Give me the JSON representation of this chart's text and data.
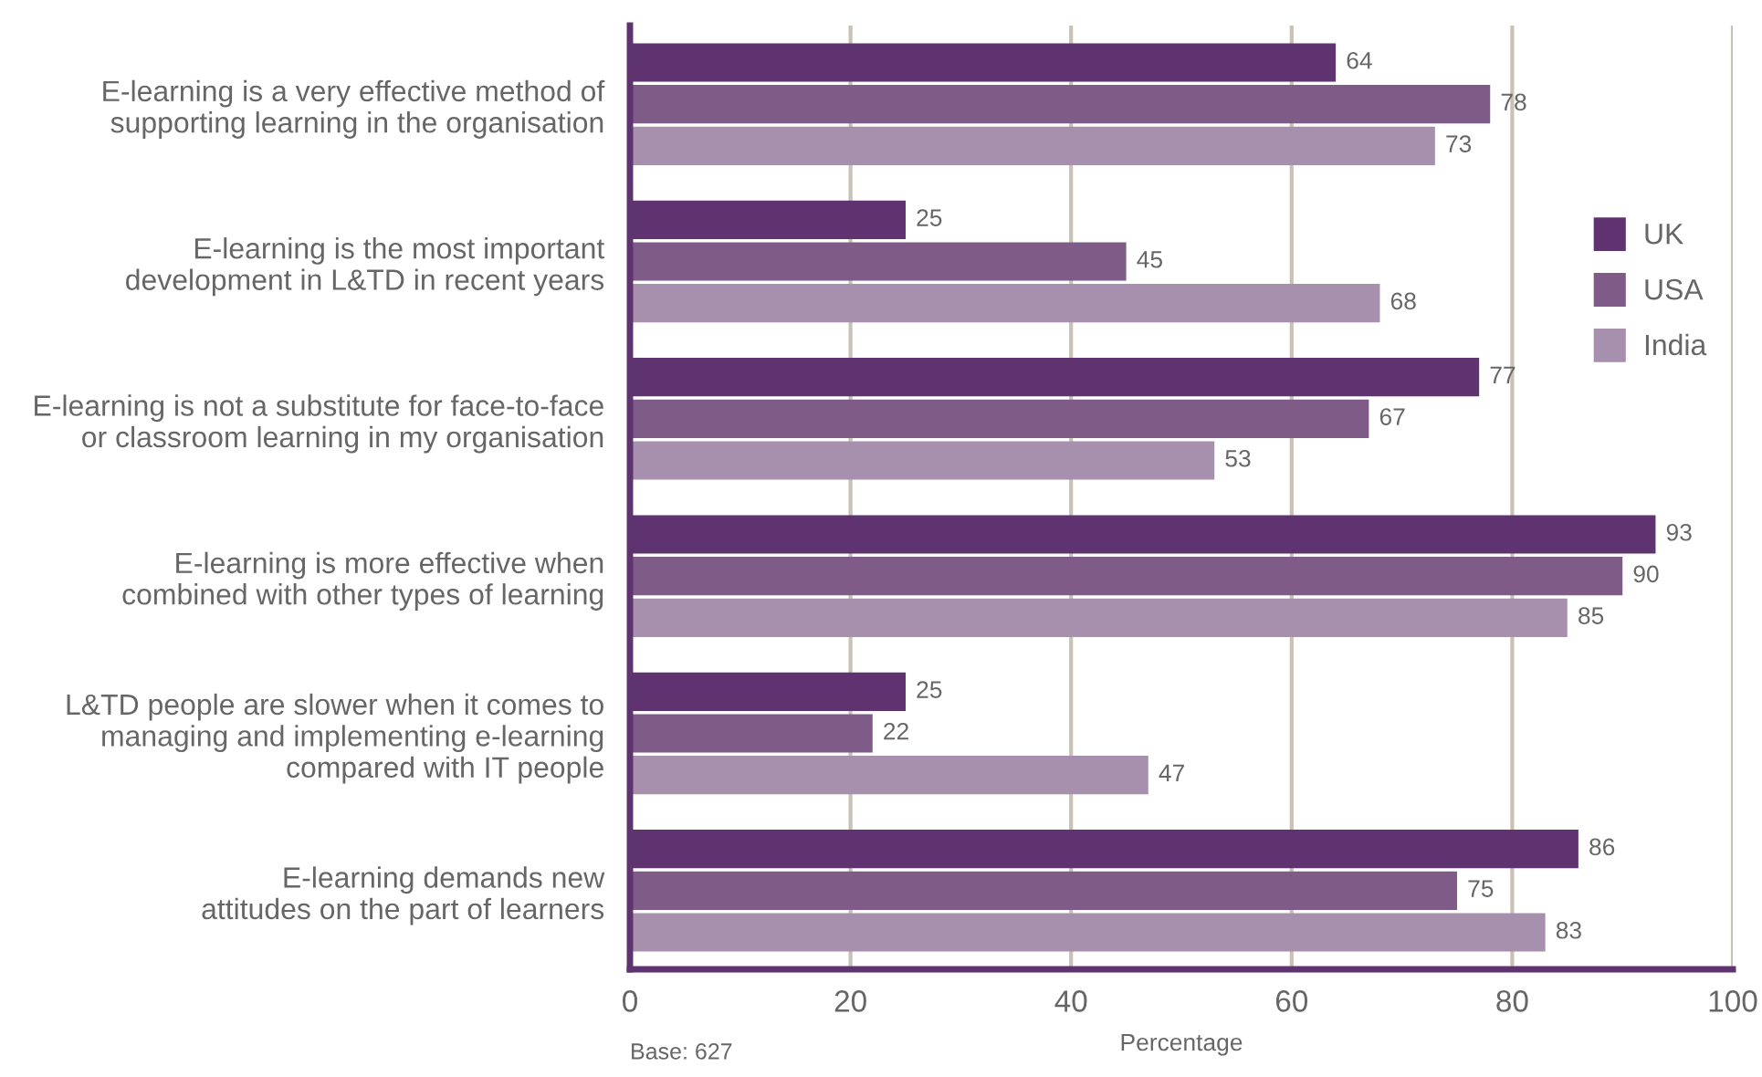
{
  "chart_data": {
    "type": "bar",
    "orientation": "horizontal",
    "categories": [
      "E-learning is a very effective method of\nsupporting learning in the organisation",
      "E-learning is the most important\ndevelopment in L&TD in recent years",
      "E-learning is not a substitute for face-to-face\nor classroom learning in my organisation",
      "E-learning is more effective when\ncombined with other types of learning",
      "L&TD people are slower when it comes to\nmanaging and implementing e-learning\ncompared with IT people",
      "E-learning demands new\nattitudes on the part of learners"
    ],
    "series": [
      {
        "name": "UK",
        "color": "#5e3370",
        "values": [
          64,
          25,
          77,
          93,
          25,
          86
        ]
      },
      {
        "name": "USA",
        "color": "#7f5b87",
        "values": [
          78,
          45,
          67,
          90,
          22,
          75
        ]
      },
      {
        "name": "India",
        "color": "#a78fae",
        "values": [
          73,
          68,
          53,
          85,
          47,
          83
        ]
      }
    ],
    "xlabel": "Percentage",
    "xlim": [
      0,
      100
    ],
    "xticks": [
      0,
      20,
      40,
      60,
      80,
      100
    ],
    "annotations": [
      "Base: 627"
    ],
    "data_labels": true,
    "grid": "x",
    "legend": "right"
  }
}
